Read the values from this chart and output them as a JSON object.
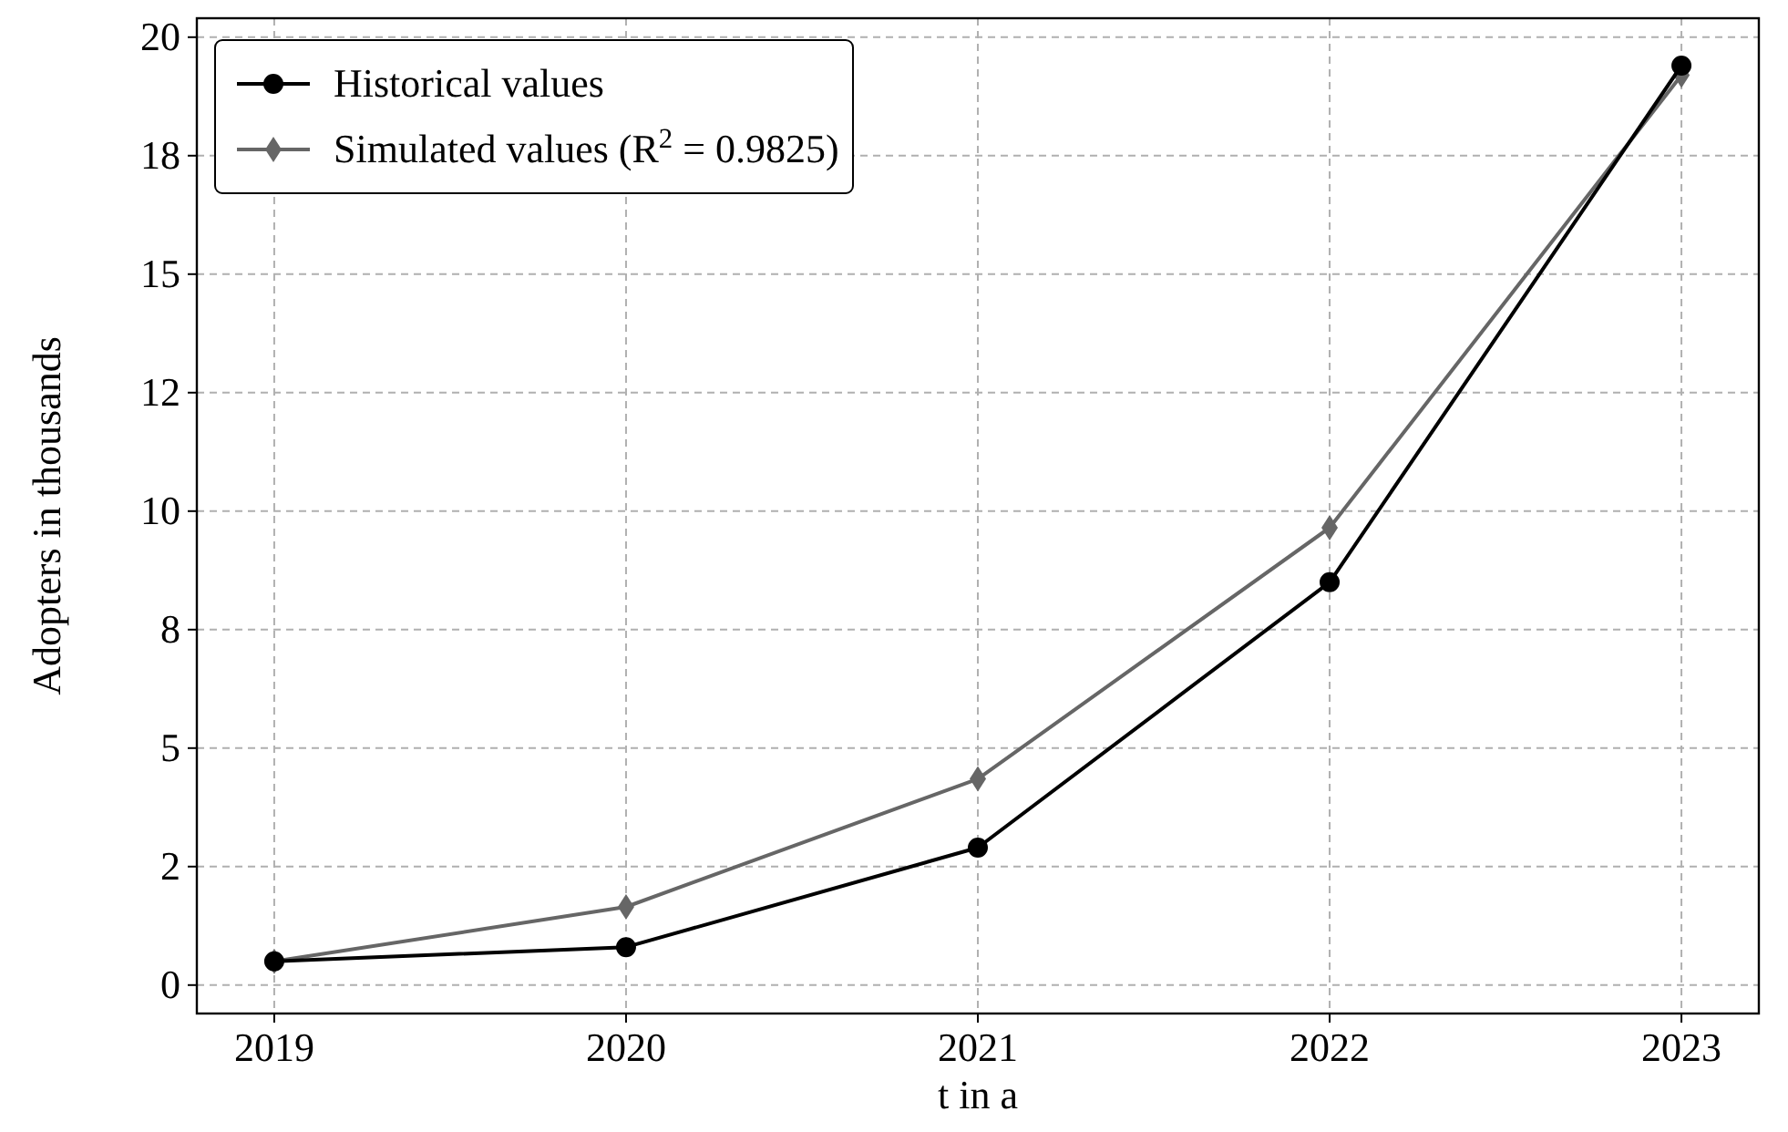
{
  "chart_data": {
    "type": "line",
    "xlabel": "t in a",
    "ylabel": "Adopters in thousands",
    "x": [
      2019,
      2020,
      2021,
      2022,
      2023
    ],
    "xlim": [
      2018.78,
      2023.22
    ],
    "xticks": [
      2019,
      2020,
      2021,
      2022,
      2023
    ],
    "ylim": [
      -0.6,
      20.4
    ],
    "yticks": [
      0,
      {
        "value": 2.5,
        "label": "2"
      },
      5,
      {
        "value": 7.5,
        "label": "8"
      },
      10,
      {
        "value": 12.5,
        "label": "12"
      },
      15,
      {
        "value": 17.5,
        "label": "18"
      },
      20
    ],
    "series": [
      {
        "name": "Historical values",
        "color": "#000000",
        "marker": "circle",
        "values": [
          0.5,
          0.8,
          2.9,
          8.5,
          19.4
        ]
      },
      {
        "name": "Simulated values (R$^{2}$ = 0.9825)",
        "color": "#666666",
        "marker": "diamond",
        "values": [
          0.5,
          1.65,
          4.35,
          9.65,
          19.2
        ]
      }
    ],
    "grid": true,
    "legend": "top left",
    "line_style": "solid"
  }
}
